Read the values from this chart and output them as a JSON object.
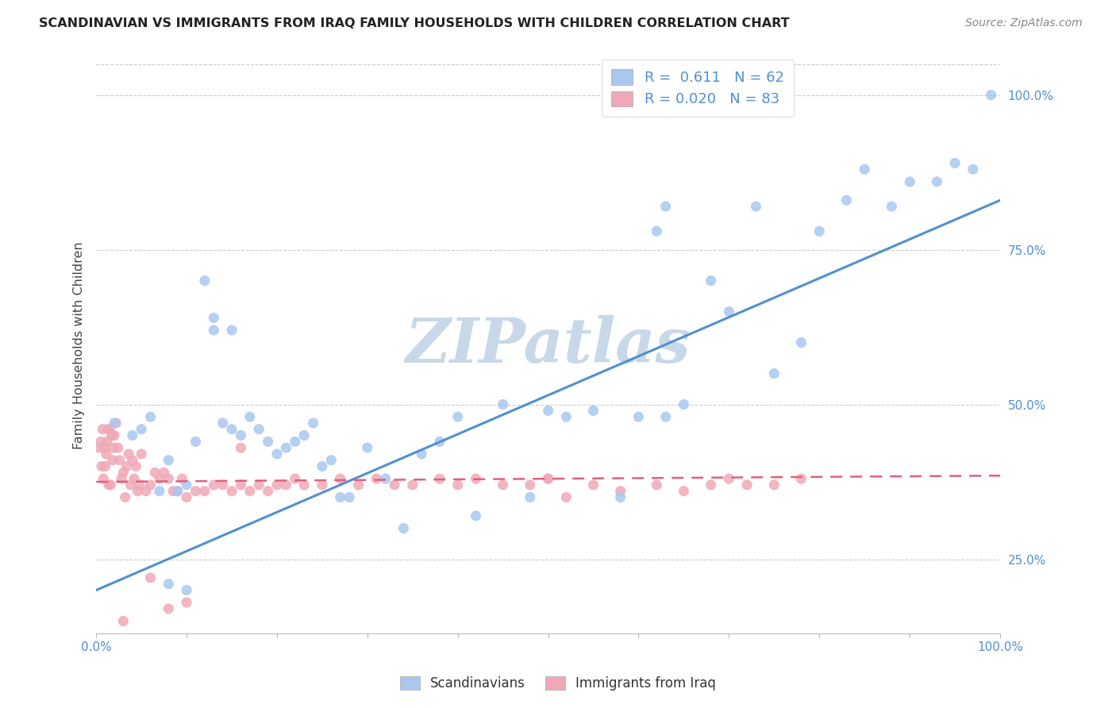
{
  "title": "SCANDINAVIAN VS IMMIGRANTS FROM IRAQ FAMILY HOUSEHOLDS WITH CHILDREN CORRELATION CHART",
  "source": "Source: ZipAtlas.com",
  "ylabel": "Family Households with Children",
  "background_color": "#ffffff",
  "grid_color": "#cccccc",
  "watermark": "ZIPatlas",
  "watermark_color": "#c8d8e8",
  "scand_color": "#a8c8f0",
  "iraq_color": "#f0a8b8",
  "scand_line_color": "#5090d0",
  "iraq_line_color": "#e06080",
  "legend_r_scand": "0.611",
  "legend_n_scand": "62",
  "legend_r_iraq": "0.020",
  "legend_n_iraq": "83",
  "ylim_min": 0.13,
  "ylim_max": 1.06,
  "xlim_min": 0.0,
  "xlim_max": 1.0,
  "y_ticks": [
    0.25,
    0.5,
    0.75,
    1.0
  ],
  "y_tick_labels": [
    "25.0%",
    "50.0%",
    "75.0%",
    "100.0%"
  ],
  "x_ticks": [
    0.0,
    0.1,
    0.2,
    0.3,
    0.4,
    0.5,
    0.6,
    0.7,
    0.8,
    0.9,
    1.0
  ],
  "scand_line_x0": 0.0,
  "scand_line_y0": 0.2,
  "scand_line_x1": 1.0,
  "scand_line_y1": 0.83,
  "iraq_line_x0": 0.0,
  "iraq_line_y0": 0.375,
  "iraq_line_x1": 1.0,
  "iraq_line_y1": 0.385,
  "scand_x": [
    0.02,
    0.04,
    0.05,
    0.06,
    0.07,
    0.08,
    0.09,
    0.1,
    0.11,
    0.12,
    0.13,
    0.14,
    0.15,
    0.16,
    0.17,
    0.18,
    0.19,
    0.2,
    0.21,
    0.22,
    0.23,
    0.24,
    0.25,
    0.26,
    0.27,
    0.28,
    0.3,
    0.32,
    0.34,
    0.36,
    0.38,
    0.4,
    0.42,
    0.45,
    0.48,
    0.5,
    0.52,
    0.55,
    0.58,
    0.6,
    0.63,
    0.65,
    0.68,
    0.7,
    0.73,
    0.75,
    0.78,
    0.8,
    0.83,
    0.85,
    0.88,
    0.9,
    0.93,
    0.95,
    0.97,
    0.99,
    0.13,
    0.15,
    0.62,
    0.63,
    0.08,
    0.1
  ],
  "scand_y": [
    0.47,
    0.45,
    0.46,
    0.48,
    0.36,
    0.41,
    0.36,
    0.37,
    0.44,
    0.7,
    0.64,
    0.47,
    0.46,
    0.45,
    0.48,
    0.46,
    0.44,
    0.42,
    0.43,
    0.44,
    0.45,
    0.47,
    0.4,
    0.41,
    0.35,
    0.35,
    0.43,
    0.38,
    0.3,
    0.42,
    0.44,
    0.48,
    0.32,
    0.5,
    0.35,
    0.49,
    0.48,
    0.49,
    0.35,
    0.48,
    0.48,
    0.5,
    0.7,
    0.65,
    0.82,
    0.55,
    0.6,
    0.78,
    0.83,
    0.88,
    0.82,
    0.86,
    0.86,
    0.89,
    0.88,
    1.0,
    0.62,
    0.62,
    0.78,
    0.82,
    0.21,
    0.2
  ],
  "iraq_x": [
    0.003,
    0.005,
    0.006,
    0.007,
    0.008,
    0.009,
    0.01,
    0.011,
    0.012,
    0.013,
    0.014,
    0.015,
    0.016,
    0.017,
    0.018,
    0.019,
    0.02,
    0.022,
    0.024,
    0.026,
    0.028,
    0.03,
    0.032,
    0.034,
    0.036,
    0.038,
    0.04,
    0.042,
    0.044,
    0.046,
    0.048,
    0.05,
    0.055,
    0.06,
    0.065,
    0.07,
    0.075,
    0.08,
    0.085,
    0.09,
    0.095,
    0.1,
    0.11,
    0.12,
    0.13,
    0.14,
    0.15,
    0.16,
    0.17,
    0.18,
    0.19,
    0.2,
    0.21,
    0.22,
    0.23,
    0.25,
    0.27,
    0.29,
    0.31,
    0.33,
    0.35,
    0.38,
    0.4,
    0.42,
    0.45,
    0.48,
    0.5,
    0.52,
    0.55,
    0.58,
    0.62,
    0.65,
    0.68,
    0.7,
    0.72,
    0.75,
    0.78,
    0.5,
    0.16,
    0.06,
    0.08,
    0.1,
    0.03
  ],
  "iraq_y": [
    0.43,
    0.44,
    0.4,
    0.46,
    0.38,
    0.43,
    0.4,
    0.42,
    0.44,
    0.46,
    0.37,
    0.46,
    0.37,
    0.45,
    0.41,
    0.43,
    0.45,
    0.47,
    0.43,
    0.41,
    0.38,
    0.39,
    0.35,
    0.4,
    0.42,
    0.37,
    0.41,
    0.38,
    0.4,
    0.36,
    0.37,
    0.42,
    0.36,
    0.37,
    0.39,
    0.38,
    0.39,
    0.38,
    0.36,
    0.36,
    0.38,
    0.35,
    0.36,
    0.36,
    0.37,
    0.37,
    0.36,
    0.37,
    0.36,
    0.37,
    0.36,
    0.37,
    0.37,
    0.38,
    0.37,
    0.37,
    0.38,
    0.37,
    0.38,
    0.37,
    0.37,
    0.38,
    0.37,
    0.38,
    0.37,
    0.37,
    0.38,
    0.35,
    0.37,
    0.36,
    0.37,
    0.36,
    0.37,
    0.38,
    0.37,
    0.37,
    0.38,
    0.38,
    0.43,
    0.22,
    0.17,
    0.18,
    0.15
  ]
}
